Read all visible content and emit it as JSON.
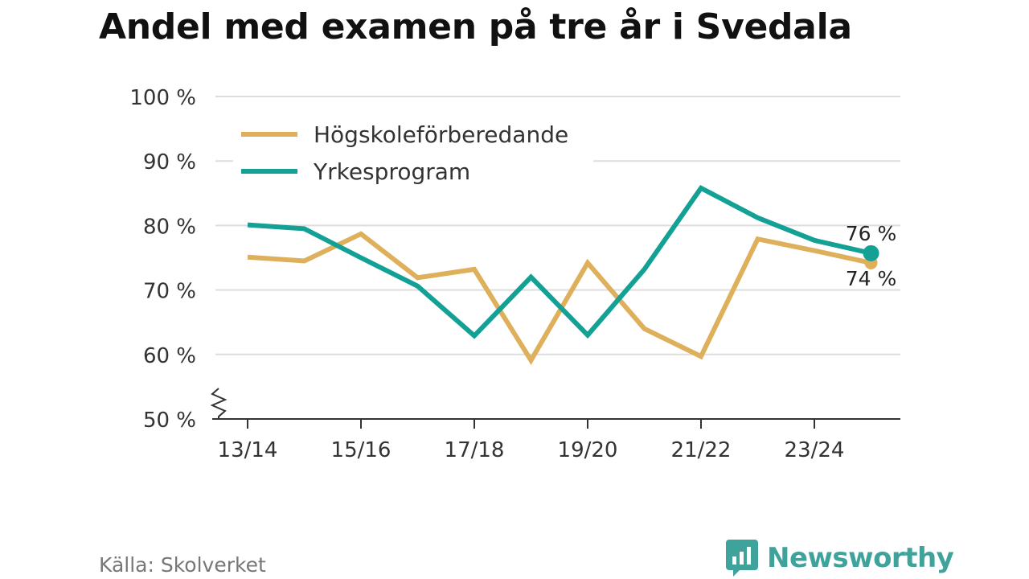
{
  "title": "Andel med examen på tre år i Svedala",
  "source": "Källa: Skolverket",
  "brand": "Newsworthy",
  "colors": {
    "hogskola": "#deb05c",
    "yrke": "#13a095",
    "grid": "#dddddd",
    "axis": "#333333",
    "text": "#333333"
  },
  "chart_data": {
    "type": "line",
    "title": "Andel med examen på tre år i Svedala",
    "x": [
      "13/14",
      "14/15",
      "15/16",
      "16/17",
      "17/18",
      "18/19",
      "19/20",
      "20/21",
      "21/22",
      "22/23",
      "23/24",
      "24/25"
    ],
    "xtick_labels": [
      "13/14",
      "15/16",
      "17/18",
      "19/20",
      "21/22",
      "23/24"
    ],
    "ylim": [
      50,
      100
    ],
    "yticks": [
      50,
      60,
      70,
      80,
      90,
      100
    ],
    "ytick_labels": [
      "50 %",
      "60 %",
      "70 %",
      "80 %",
      "90 %",
      "100 %"
    ],
    "grid": true,
    "legend_position": "top-left",
    "series": [
      {
        "name": "Högskoleförberedande",
        "values": [
          75.1,
          74.5,
          78.7,
          71.9,
          73.2,
          59.1,
          74.2,
          64.0,
          59.7,
          77.9,
          76.1,
          74.2
        ],
        "end_label": "74 %"
      },
      {
        "name": "Yrkesprogram",
        "values": [
          80.1,
          79.5,
          75.0,
          70.6,
          62.9,
          72.0,
          63.0,
          73.2,
          85.8,
          81.2,
          77.7,
          75.7
        ],
        "end_label": "76 %"
      }
    ]
  }
}
